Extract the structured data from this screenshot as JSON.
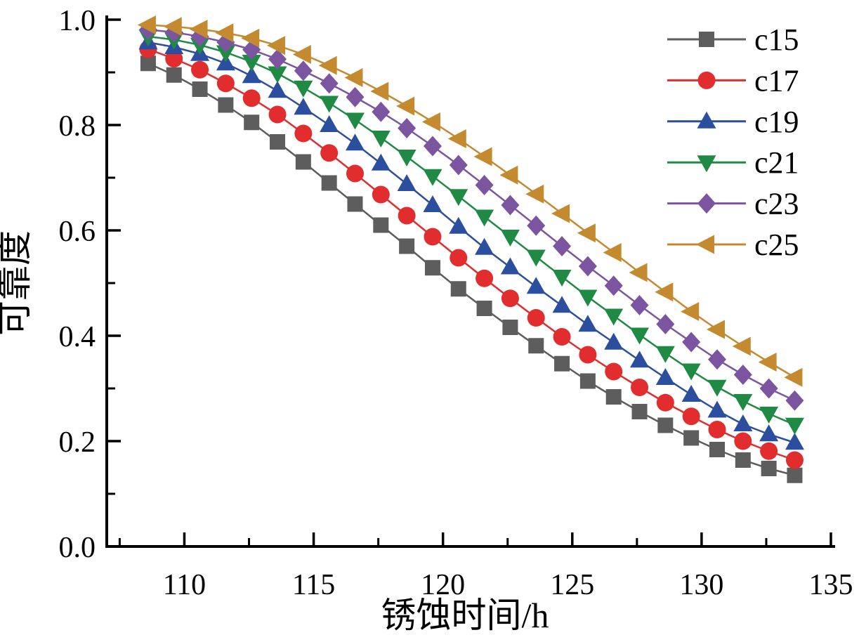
{
  "chart_data": {
    "type": "line",
    "title": "",
    "xlabel": "锈蚀时间/h",
    "ylabel": "可靠度",
    "xlim": [
      107,
      135
    ],
    "ylim": [
      0.0,
      1.0
    ],
    "x_major_ticks": [
      110,
      115,
      120,
      125,
      130,
      135
    ],
    "x_minor_ticks": [
      107.5,
      112.5,
      117.5,
      122.5,
      127.5,
      132.5
    ],
    "y_major_ticks": [
      0.0,
      0.2,
      0.4,
      0.6,
      0.8,
      1.0
    ],
    "y_minor_ticks": [
      0.1,
      0.3,
      0.5,
      0.7,
      0.9
    ],
    "grid": false,
    "legend_position": "top-right",
    "axis_color": "#000000",
    "x": [
      108.6,
      109.6,
      110.6,
      111.6,
      112.6,
      113.6,
      114.6,
      115.6,
      116.6,
      117.6,
      118.6,
      119.6,
      120.6,
      121.6,
      122.6,
      123.6,
      124.6,
      125.6,
      126.6,
      127.6,
      128.6,
      129.6,
      130.6,
      131.6,
      132.6,
      133.6
    ],
    "series": [
      {
        "name": "c15",
        "color": "#5d5d5d",
        "marker": "square",
        "values": [
          0.917,
          0.895,
          0.868,
          0.838,
          0.805,
          0.768,
          0.73,
          0.69,
          0.65,
          0.61,
          0.57,
          0.529,
          0.489,
          0.452,
          0.416,
          0.381,
          0.347,
          0.314,
          0.284,
          0.256,
          0.23,
          0.206,
          0.184,
          0.164,
          0.148,
          0.135
        ]
      },
      {
        "name": "c17",
        "color": "#e12d2d",
        "marker": "circle",
        "values": [
          0.944,
          0.926,
          0.905,
          0.879,
          0.851,
          0.82,
          0.784,
          0.747,
          0.708,
          0.668,
          0.628,
          0.588,
          0.548,
          0.509,
          0.471,
          0.434,
          0.398,
          0.364,
          0.332,
          0.302,
          0.273,
          0.247,
          0.222,
          0.2,
          0.181,
          0.164
        ]
      },
      {
        "name": "c19",
        "color": "#2b4f9e",
        "marker": "triangle-up",
        "values": [
          0.957,
          0.948,
          0.935,
          0.917,
          0.893,
          0.865,
          0.833,
          0.8,
          0.765,
          0.727,
          0.688,
          0.648,
          0.607,
          0.567,
          0.53,
          0.493,
          0.457,
          0.421,
          0.387,
          0.353,
          0.32,
          0.288,
          0.258,
          0.232,
          0.213,
          0.197
        ]
      },
      {
        "name": "c21",
        "color": "#1f8a44",
        "marker": "triangle-down",
        "values": [
          0.968,
          0.962,
          0.952,
          0.938,
          0.92,
          0.898,
          0.871,
          0.842,
          0.81,
          0.776,
          0.74,
          0.703,
          0.665,
          0.626,
          0.588,
          0.55,
          0.512,
          0.474,
          0.438,
          0.402,
          0.367,
          0.334,
          0.303,
          0.276,
          0.252,
          0.231
        ]
      },
      {
        "name": "c23",
        "color": "#7c55a1",
        "marker": "diamond",
        "values": [
          0.981,
          0.976,
          0.968,
          0.957,
          0.943,
          0.925,
          0.903,
          0.879,
          0.853,
          0.825,
          0.794,
          0.76,
          0.724,
          0.686,
          0.648,
          0.609,
          0.57,
          0.532,
          0.495,
          0.458,
          0.422,
          0.388,
          0.355,
          0.326,
          0.3,
          0.277
        ]
      },
      {
        "name": "c25",
        "color": "#c38a30",
        "marker": "triangle-left",
        "values": [
          0.99,
          0.987,
          0.982,
          0.975,
          0.965,
          0.951,
          0.934,
          0.913,
          0.89,
          0.864,
          0.836,
          0.806,
          0.774,
          0.74,
          0.705,
          0.669,
          0.632,
          0.595,
          0.558,
          0.52,
          0.483,
          0.446,
          0.412,
          0.38,
          0.35,
          0.321
        ]
      }
    ]
  }
}
